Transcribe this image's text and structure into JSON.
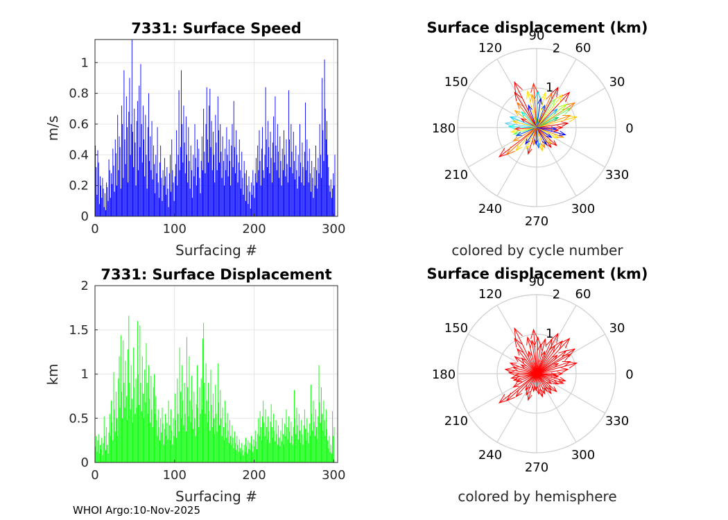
{
  "chart_data": [
    {
      "type": "bar",
      "title": "7331: Surface Speed",
      "xlabel": "Surfacing #",
      "ylabel": "m/s",
      "xlim": [
        0,
        305
      ],
      "ylim": [
        0,
        1.15
      ],
      "xticks": [
        "0",
        "100",
        "200",
        "300"
      ],
      "yticks": [
        "0",
        "0.2",
        "0.4",
        "0.6",
        "0.8",
        "1"
      ],
      "grid": true,
      "color": "#0000ff",
      "n": 305,
      "values": [
        0.46,
        0.32,
        0.14,
        0.43,
        0.35,
        0.08,
        0.26,
        0.2,
        0.12,
        0.25,
        0.18,
        0.06,
        0.15,
        0.04,
        0.22,
        0.19,
        0.1,
        0.37,
        0.3,
        0.12,
        0.28,
        0.21,
        0.44,
        0.33,
        0.16,
        0.5,
        0.41,
        0.2,
        0.66,
        0.3,
        0.52,
        0.45,
        0.18,
        0.72,
        0.6,
        0.25,
        0.95,
        0.5,
        0.34,
        0.78,
        0.58,
        0.22,
        0.68,
        0.9,
        0.4,
        0.6,
        1.15,
        0.55,
        0.32,
        0.7,
        0.48,
        0.2,
        0.62,
        0.75,
        0.3,
        0.85,
        0.45,
        0.99,
        0.6,
        0.35,
        0.72,
        0.5,
        0.26,
        0.66,
        0.4,
        0.18,
        0.58,
        0.8,
        0.36,
        0.52,
        0.3,
        0.62,
        0.24,
        0.46,
        0.34,
        0.15,
        0.4,
        0.28,
        0.58,
        0.22,
        0.12,
        0.35,
        0.46,
        0.25,
        0.1,
        0.3,
        0.2,
        0.38,
        0.26,
        0.14,
        0.32,
        0.18,
        0.06,
        0.28,
        0.4,
        0.16,
        0.5,
        0.3,
        0.22,
        0.1,
        0.26,
        0.34,
        0.56,
        0.2,
        0.4,
        0.82,
        0.3,
        0.45,
        0.95,
        0.6,
        0.35,
        0.72,
        0.48,
        0.28,
        0.65,
        0.4,
        0.22,
        0.58,
        0.36,
        0.18,
        0.46,
        0.3,
        0.12,
        0.4,
        0.26,
        0.6,
        0.38,
        0.2,
        0.5,
        0.32,
        0.44,
        0.25,
        0.15,
        0.36,
        0.52,
        0.3,
        0.7,
        0.42,
        0.28,
        0.6,
        0.84,
        0.5,
        0.35,
        0.72,
        0.83,
        0.45,
        0.62,
        0.3,
        0.55,
        0.4,
        0.22,
        0.66,
        0.48,
        0.3,
        0.78,
        0.56,
        0.35,
        0.6,
        0.42,
        0.25,
        0.52,
        0.36,
        0.2,
        0.44,
        0.3,
        0.58,
        0.4,
        0.26,
        0.5,
        0.36,
        0.2,
        0.46,
        0.6,
        0.32,
        0.75,
        0.45,
        0.28,
        0.56,
        0.4,
        0.22,
        0.35,
        0.5,
        0.3,
        0.18,
        0.42,
        0.25,
        0.14,
        0.36,
        0.28,
        0.1,
        0.3,
        0.2,
        0.08,
        0.26,
        0.16,
        0.05,
        0.22,
        0.14,
        0.3,
        0.2,
        0.12,
        0.28,
        0.38,
        0.22,
        0.46,
        0.3,
        0.56,
        0.36,
        0.2,
        0.44,
        0.58,
        0.3,
        0.25,
        0.4,
        0.84,
        0.5,
        0.32,
        0.62,
        0.45,
        0.28,
        0.55,
        0.38,
        0.22,
        0.48,
        0.65,
        0.35,
        0.78,
        0.46,
        0.3,
        0.6,
        0.42,
        0.25,
        0.52,
        0.36,
        0.2,
        0.44,
        0.3,
        0.56,
        0.4,
        0.26,
        0.5,
        0.34,
        0.22,
        0.82,
        0.5,
        0.32,
        0.6,
        0.42,
        0.28,
        0.55,
        0.36,
        0.24,
        0.46,
        0.3,
        0.18,
        0.4,
        0.26,
        0.6,
        0.35,
        0.22,
        0.48,
        0.32,
        0.2,
        0.42,
        0.74,
        0.3,
        0.5,
        0.36,
        0.22,
        0.44,
        0.28,
        0.16,
        0.36,
        0.25,
        0.12,
        0.32,
        0.2,
        0.46,
        0.3,
        0.18,
        0.38,
        0.28,
        0.6,
        0.4,
        0.25,
        0.9,
        0.56,
        0.36,
        1.02,
        0.7,
        0.5,
        0.62,
        0.4,
        0.32,
        0.2,
        0.16,
        0.24,
        0.12,
        0.18,
        0.28,
        0.2,
        0.4
      ]
    },
    {
      "type": "polar-quiver",
      "title": "Surface displacement (km)",
      "caption": "colored by cycle number",
      "r_ticks": [
        "1",
        "2"
      ],
      "rlim": [
        0,
        2
      ],
      "theta_ticks": [
        "0",
        "30",
        "60",
        "90",
        "120",
        "150",
        "180",
        "210",
        "240",
        "270",
        "300",
        "330"
      ],
      "colormap": "jet",
      "arrows": [
        {
          "theta": 0,
          "r": 0.65,
          "color": "#ff0000"
        },
        {
          "theta": 8,
          "r": 0.8,
          "color": "#dd0000"
        },
        {
          "theta": 15,
          "r": 1.05,
          "color": "#ffcc00"
        },
        {
          "theta": 20,
          "r": 0.9,
          "color": "#ff8800"
        },
        {
          "theta": 25,
          "r": 0.6,
          "color": "#00cc66"
        },
        {
          "theta": 30,
          "r": 0.98,
          "color": "#66ff66"
        },
        {
          "theta": 33,
          "r": 1.15,
          "color": "#ff7700"
        },
        {
          "theta": 38,
          "r": 0.95,
          "color": "#aaff00"
        },
        {
          "theta": 42,
          "r": 0.7,
          "color": "#00aaff"
        },
        {
          "theta": 47,
          "r": 1.22,
          "color": "#ff0000"
        },
        {
          "theta": 52,
          "r": 1.05,
          "color": "#ffdd00"
        },
        {
          "theta": 57,
          "r": 0.85,
          "color": "#88ff44"
        },
        {
          "theta": 62,
          "r": 1.15,
          "color": "#cc0000"
        },
        {
          "theta": 66,
          "r": 0.95,
          "color": "#ff6600"
        },
        {
          "theta": 70,
          "r": 0.6,
          "color": "#0044ff"
        },
        {
          "theta": 76,
          "r": 0.9,
          "color": "#ffee00"
        },
        {
          "theta": 82,
          "r": 0.75,
          "color": "#0000cc"
        },
        {
          "theta": 88,
          "r": 0.92,
          "color": "#00cccc"
        },
        {
          "theta": 94,
          "r": 1.12,
          "color": "#ff2200"
        },
        {
          "theta": 98,
          "r": 0.85,
          "color": "#ff9900"
        },
        {
          "theta": 104,
          "r": 0.95,
          "color": "#ffdd00"
        },
        {
          "theta": 110,
          "r": 0.6,
          "color": "#0000ff"
        },
        {
          "theta": 116,
          "r": 1.28,
          "color": "#ff0000"
        },
        {
          "theta": 122,
          "r": 1.05,
          "color": "#dd0000"
        },
        {
          "theta": 128,
          "r": 0.8,
          "color": "#ff6600"
        },
        {
          "theta": 134,
          "r": 0.55,
          "color": "#00ffcc"
        },
        {
          "theta": 142,
          "r": 0.7,
          "color": "#ffaa00"
        },
        {
          "theta": 150,
          "r": 0.45,
          "color": "#ff0000"
        },
        {
          "theta": 158,
          "r": 0.72,
          "color": "#00ccff"
        },
        {
          "theta": 165,
          "r": 0.62,
          "color": "#ffcc00"
        },
        {
          "theta": 172,
          "r": 0.8,
          "color": "#66ccff"
        },
        {
          "theta": 178,
          "r": 0.7,
          "color": "#00ffee"
        },
        {
          "theta": 184,
          "r": 0.55,
          "color": "#ff0000"
        },
        {
          "theta": 190,
          "r": 0.65,
          "color": "#ffee00"
        },
        {
          "theta": 196,
          "r": 0.6,
          "color": "#66ff66"
        },
        {
          "theta": 202,
          "r": 0.55,
          "color": "#0044ff"
        },
        {
          "theta": 210,
          "r": 0.68,
          "color": "#ff8800"
        },
        {
          "theta": 218,
          "r": 1.2,
          "color": "#ff0000"
        },
        {
          "theta": 222,
          "r": 1.02,
          "color": "#ff6600"
        },
        {
          "theta": 228,
          "r": 0.78,
          "color": "#ffcc00"
        },
        {
          "theta": 236,
          "r": 0.5,
          "color": "#0000cc"
        },
        {
          "theta": 244,
          "r": 0.6,
          "color": "#ffdd00"
        },
        {
          "theta": 252,
          "r": 0.7,
          "color": "#ff0000"
        },
        {
          "theta": 260,
          "r": 0.45,
          "color": "#ff7700"
        },
        {
          "theta": 268,
          "r": 0.42,
          "color": "#0000ff"
        },
        {
          "theta": 276,
          "r": 0.52,
          "color": "#0066ff"
        },
        {
          "theta": 284,
          "r": 0.6,
          "color": "#ffcc00"
        },
        {
          "theta": 292,
          "r": 0.55,
          "color": "#ff8800"
        },
        {
          "theta": 300,
          "r": 0.5,
          "color": "#0000cc"
        },
        {
          "theta": 306,
          "r": 0.62,
          "color": "#dd0000"
        },
        {
          "theta": 312,
          "r": 0.55,
          "color": "#ffaa00"
        },
        {
          "theta": 318,
          "r": 0.68,
          "color": "#ff0000"
        },
        {
          "theta": 326,
          "r": 0.45,
          "color": "#0000ff"
        },
        {
          "theta": 334,
          "r": 0.6,
          "color": "#ffee00"
        },
        {
          "theta": 340,
          "r": 0.72,
          "color": "#ff8800"
        },
        {
          "theta": 346,
          "r": 0.75,
          "color": "#0000ff"
        },
        {
          "theta": 352,
          "r": 0.55,
          "color": "#ff0000"
        },
        {
          "theta": 356,
          "r": 0.5,
          "color": "#0033ff"
        }
      ]
    },
    {
      "type": "bar",
      "title": "7331: Surface Displacement",
      "xlabel": "Surfacing #",
      "ylabel": "km",
      "xlim": [
        0,
        305
      ],
      "ylim": [
        0,
        2
      ],
      "xticks": [
        "0",
        "100",
        "200",
        "300"
      ],
      "yticks": [
        "0",
        "0.5",
        "1",
        "1.5",
        "2"
      ],
      "grid": true,
      "color": "#00ff00",
      "n": 305,
      "values": [
        0.18,
        0.3,
        0.12,
        0.25,
        0.32,
        0.1,
        0.2,
        0.15,
        0.28,
        0.08,
        0.22,
        0.52,
        0.3,
        0.14,
        0.4,
        0.2,
        0.1,
        0.34,
        0.55,
        0.3,
        0.7,
        0.45,
        0.25,
        1.02,
        0.6,
        0.35,
        0.8,
        0.5,
        0.3,
        0.95,
        1.2,
        0.62,
        1.44,
        0.8,
        0.5,
        1.38,
        0.9,
        0.62,
        1.15,
        0.75,
        0.48,
        1.28,
        1.66,
        0.9,
        0.6,
        1.1,
        0.72,
        0.45,
        1.3,
        0.85,
        0.55,
        0.95,
        0.62,
        1.6,
        1.0,
        0.65,
        1.55,
        0.9,
        0.58,
        1.2,
        0.78,
        0.5,
        1.05,
        0.68,
        1.35,
        0.9,
        0.55,
        1.1,
        0.72,
        0.45,
        0.98,
        0.6,
        0.4,
        0.85,
        1.0,
        0.55,
        0.75,
        0.48,
        0.3,
        0.6,
        0.4,
        0.25,
        0.5,
        0.34,
        0.62,
        0.44,
        0.2,
        0.38,
        0.55,
        0.3,
        0.45,
        0.26,
        0.7,
        0.42,
        0.25,
        0.6,
        0.36,
        0.2,
        0.5,
        0.3,
        0.78,
        0.48,
        0.28,
        0.95,
        0.55,
        0.35,
        1.3,
        0.8,
        0.5,
        1.1,
        0.7,
        0.42,
        0.9,
        0.55,
        0.35,
        1.42,
        0.85,
        0.52,
        1.2,
        0.7,
        0.45,
        0.98,
        0.6,
        0.38,
        0.8,
        0.5,
        0.3,
        0.66,
        1.1,
        0.62,
        0.4,
        0.85,
        0.55,
        0.95,
        0.6,
        1.4,
        1.58,
        0.9,
        0.55,
        1.12,
        0.7,
        0.45,
        0.9,
        0.58,
        0.36,
        1.05,
        0.65,
        0.4,
        0.78,
        0.5,
        0.32,
        0.88,
        0.55,
        0.35,
        1.12,
        0.68,
        0.42,
        0.82,
        0.5,
        0.3,
        0.62,
        0.4,
        0.25,
        0.7,
        0.45,
        0.28,
        0.56,
        0.36,
        0.22,
        0.48,
        0.3,
        0.2,
        0.42,
        0.28,
        0.16,
        0.35,
        0.22,
        0.14,
        0.3,
        0.2,
        0.12,
        0.26,
        0.16,
        0.1,
        0.22,
        0.14,
        0.08,
        0.2,
        0.12,
        0.28,
        0.18,
        0.1,
        0.25,
        0.15,
        0.22,
        0.14,
        0.3,
        0.2,
        0.12,
        0.26,
        0.18,
        0.36,
        0.24,
        0.15,
        0.32,
        0.5,
        0.3,
        0.58,
        0.4,
        0.25,
        0.52,
        0.7,
        0.45,
        0.3,
        0.6,
        0.4,
        0.26,
        0.52,
        0.35,
        0.22,
        0.46,
        0.66,
        0.4,
        0.28,
        0.55,
        0.36,
        0.24,
        0.48,
        0.32,
        0.2,
        0.42,
        0.28,
        0.18,
        0.36,
        0.24,
        0.5,
        0.32,
        0.2,
        0.44,
        0.3,
        0.6,
        0.4,
        0.26,
        0.52,
        0.35,
        0.22,
        0.46,
        0.3,
        0.2,
        0.4,
        0.82,
        0.5,
        0.32,
        0.62,
        0.42,
        0.26,
        0.55,
        0.36,
        0.22,
        0.48,
        0.32,
        0.2,
        0.42,
        0.6,
        0.38,
        0.25,
        0.5,
        0.34,
        0.22,
        0.44,
        0.3,
        0.88,
        0.55,
        0.36,
        0.7,
        0.46,
        0.3,
        0.6,
        0.4,
        0.26,
        0.52,
        1.1,
        0.68,
        0.45,
        0.85,
        0.55,
        0.36,
        0.7,
        0.48,
        0.3,
        0.6,
        0.38,
        0.25,
        0.16,
        0.3,
        0.12,
        0.2,
        0.1,
        0.58,
        0.3,
        0.4
      ]
    },
    {
      "type": "polar-quiver",
      "title": "Surface displacement (km)",
      "caption": "colored by hemisphere",
      "r_ticks": [
        "1",
        "2"
      ],
      "rlim": [
        0,
        2
      ],
      "theta_ticks": [
        "0",
        "30",
        "60",
        "90",
        "120",
        "150",
        "180",
        "210",
        "240",
        "270",
        "300",
        "330"
      ],
      "color": "#ff0000"
    }
  ],
  "footer": {
    "text": "WHOI Argo:10-Nov-2025"
  }
}
